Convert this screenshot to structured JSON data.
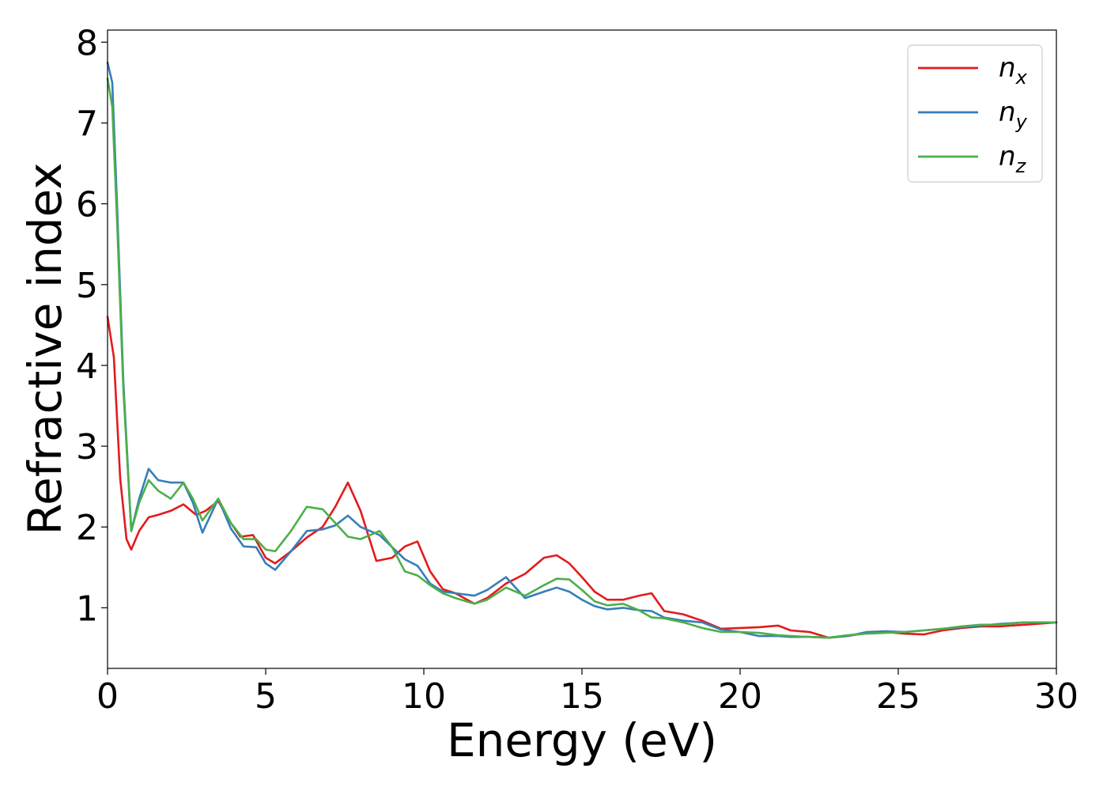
{
  "chart_data": {
    "type": "line",
    "xlabel": "Energy (eV)",
    "ylabel": "Refractive index",
    "xlim": [
      0,
      30
    ],
    "ylim": [
      0.25,
      8.15
    ],
    "xticks": [
      "0",
      "5",
      "10",
      "15",
      "20",
      "25",
      "30"
    ],
    "yticks": [
      "1",
      "2",
      "3",
      "4",
      "5",
      "6",
      "7",
      "8"
    ],
    "grid": false,
    "legend_position": "top-right",
    "series": [
      {
        "name": "n_x",
        "legend_base": "n",
        "legend_sub": "x",
        "color": "#e41a1c",
        "x": [
          0,
          0.2,
          0.4,
          0.6,
          0.75,
          1.0,
          1.3,
          1.6,
          2.0,
          2.4,
          2.8,
          3.1,
          3.5,
          3.9,
          4.2,
          4.6,
          5.0,
          5.3,
          5.8,
          6.3,
          6.8,
          7.2,
          7.6,
          8.0,
          8.5,
          9.0,
          9.4,
          9.8,
          10.2,
          10.6,
          11.0,
          11.6,
          12.0,
          12.6,
          13.2,
          13.8,
          14.2,
          14.6,
          15.0,
          15.4,
          15.8,
          16.3,
          16.8,
          17.2,
          17.6,
          18.2,
          18.8,
          19.4,
          20.0,
          20.6,
          21.2,
          21.6,
          22.2,
          22.8,
          23.4,
          24.0,
          24.6,
          25.2,
          25.8,
          26.4,
          27.0,
          27.6,
          28.2,
          29.0,
          30.0
        ],
        "y": [
          4.6,
          4.1,
          2.6,
          1.85,
          1.72,
          1.95,
          2.12,
          2.15,
          2.2,
          2.28,
          2.15,
          2.2,
          2.32,
          2.05,
          1.88,
          1.9,
          1.62,
          1.55,
          1.7,
          1.87,
          2.0,
          2.25,
          2.55,
          2.2,
          1.58,
          1.62,
          1.76,
          1.82,
          1.45,
          1.23,
          1.18,
          1.05,
          1.12,
          1.3,
          1.42,
          1.62,
          1.65,
          1.55,
          1.38,
          1.2,
          1.1,
          1.1,
          1.15,
          1.18,
          0.96,
          0.92,
          0.84,
          0.74,
          0.75,
          0.76,
          0.78,
          0.72,
          0.7,
          0.63,
          0.65,
          0.69,
          0.7,
          0.68,
          0.67,
          0.72,
          0.75,
          0.77,
          0.77,
          0.79,
          0.82
        ]
      },
      {
        "name": "n_y",
        "legend_base": "n",
        "legend_sub": "y",
        "color": "#377eb8",
        "x": [
          0,
          0.15,
          0.3,
          0.5,
          0.75,
          1.0,
          1.3,
          1.6,
          2.0,
          2.4,
          2.7,
          3.0,
          3.5,
          3.9,
          4.3,
          4.7,
          5.0,
          5.3,
          5.8,
          6.3,
          6.8,
          7.2,
          7.6,
          8.0,
          8.6,
          9.0,
          9.4,
          9.8,
          10.2,
          10.6,
          11.0,
          11.6,
          12.0,
          12.6,
          13.2,
          13.8,
          14.2,
          14.6,
          15.0,
          15.4,
          15.8,
          16.3,
          16.8,
          17.2,
          17.6,
          18.2,
          18.8,
          19.4,
          20.0,
          20.6,
          21.2,
          21.6,
          22.2,
          22.8,
          23.4,
          24.0,
          24.6,
          25.2,
          25.8,
          26.4,
          27.0,
          27.6,
          28.2,
          29.0,
          30.0
        ],
        "y": [
          7.75,
          7.5,
          6.0,
          3.8,
          1.95,
          2.35,
          2.72,
          2.58,
          2.55,
          2.55,
          2.3,
          1.93,
          2.35,
          1.98,
          1.76,
          1.75,
          1.55,
          1.47,
          1.7,
          1.95,
          1.97,
          2.02,
          2.14,
          2.0,
          1.9,
          1.75,
          1.6,
          1.52,
          1.3,
          1.2,
          1.18,
          1.15,
          1.22,
          1.38,
          1.12,
          1.2,
          1.25,
          1.2,
          1.1,
          1.02,
          0.98,
          1.0,
          0.97,
          0.96,
          0.88,
          0.84,
          0.82,
          0.73,
          0.7,
          0.65,
          0.65,
          0.64,
          0.64,
          0.63,
          0.65,
          0.7,
          0.71,
          0.7,
          0.72,
          0.74,
          0.76,
          0.78,
          0.8,
          0.82,
          0.82
        ]
      },
      {
        "name": "n_z",
        "legend_base": "n",
        "legend_sub": "z",
        "color": "#4daf4a",
        "x": [
          0,
          0.15,
          0.3,
          0.5,
          0.75,
          1.0,
          1.3,
          1.6,
          2.0,
          2.4,
          2.7,
          3.0,
          3.5,
          3.9,
          4.3,
          4.7,
          5.0,
          5.3,
          5.8,
          6.3,
          6.8,
          7.2,
          7.6,
          8.0,
          8.6,
          9.0,
          9.4,
          9.8,
          10.2,
          10.6,
          11.0,
          11.6,
          12.0,
          12.6,
          13.2,
          13.8,
          14.2,
          14.6,
          15.0,
          15.4,
          15.8,
          16.3,
          16.8,
          17.2,
          17.6,
          18.2,
          18.8,
          19.4,
          20.0,
          20.6,
          21.2,
          21.6,
          22.2,
          22.8,
          23.4,
          24.0,
          24.6,
          25.2,
          25.8,
          26.4,
          27.0,
          27.6,
          28.2,
          29.0,
          30.0
        ],
        "y": [
          7.55,
          7.2,
          5.8,
          3.7,
          1.95,
          2.3,
          2.58,
          2.45,
          2.35,
          2.55,
          2.35,
          2.08,
          2.35,
          2.05,
          1.85,
          1.85,
          1.72,
          1.7,
          1.95,
          2.25,
          2.22,
          2.05,
          1.88,
          1.85,
          1.95,
          1.75,
          1.45,
          1.4,
          1.28,
          1.18,
          1.12,
          1.05,
          1.1,
          1.25,
          1.15,
          1.28,
          1.36,
          1.35,
          1.22,
          1.08,
          1.03,
          1.05,
          0.97,
          0.88,
          0.87,
          0.82,
          0.75,
          0.7,
          0.7,
          0.69,
          0.66,
          0.65,
          0.64,
          0.63,
          0.66,
          0.68,
          0.69,
          0.7,
          0.72,
          0.74,
          0.77,
          0.79,
          0.79,
          0.82,
          0.82
        ]
      }
    ]
  }
}
